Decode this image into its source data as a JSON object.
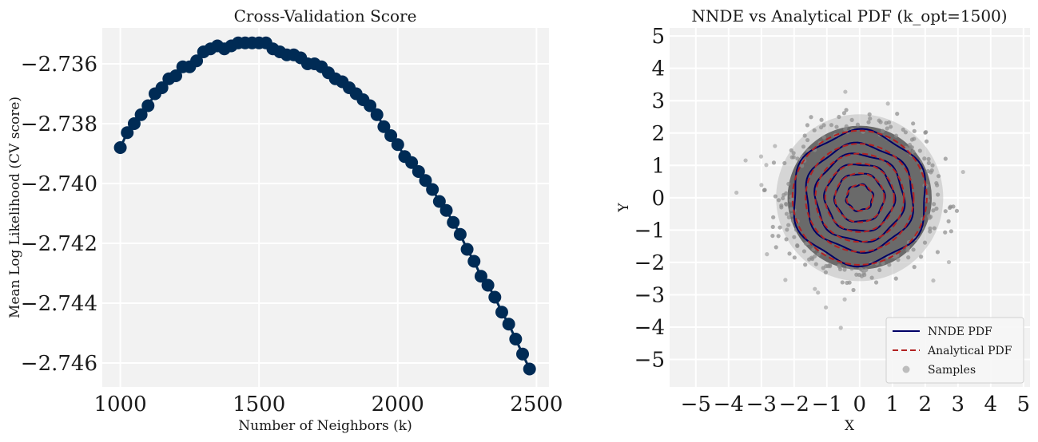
{
  "chart_data": [
    {
      "type": "line",
      "title": "Cross-Validation Score",
      "xlabel": "Number of Neighbors (k)",
      "ylabel": "Mean Log Likelihood (CV score)",
      "xlim": [
        935,
        2545
      ],
      "ylim": [
        -2.7468,
        -2.7348
      ],
      "xticks": [
        1000,
        1500,
        2000,
        2500
      ],
      "xtick_labels": [
        "1000",
        "1500",
        "2000",
        "2500"
      ],
      "yticks": [
        -2.736,
        -2.738,
        -2.74,
        -2.742,
        -2.744,
        -2.746
      ],
      "ytick_labels": [
        "−2.736",
        "−2.738",
        "−2.740",
        "−2.742",
        "−2.744",
        "−2.746"
      ],
      "grid": true,
      "marker_color": "#002b55",
      "series": [
        {
          "x": [
            1000,
            1025,
            1050,
            1075,
            1100,
            1125,
            1150,
            1175,
            1200,
            1225,
            1250,
            1275,
            1300,
            1325,
            1350,
            1375,
            1400,
            1425,
            1450,
            1475,
            1500,
            1525,
            1550,
            1575,
            1600,
            1625,
            1650,
            1675,
            1700,
            1725,
            1750,
            1775,
            1800,
            1825,
            1850,
            1875,
            1900,
            1925,
            1950,
            1975,
            2000,
            2025,
            2050,
            2075,
            2100,
            2125,
            2150,
            2175,
            2200,
            2225,
            2250,
            2275,
            2300,
            2325,
            2350,
            2375,
            2400,
            2425,
            2450,
            2475
          ],
          "values": [
            -2.7388,
            -2.7383,
            -2.738,
            -2.7377,
            -2.7374,
            -2.737,
            -2.7368,
            -2.7365,
            -2.7364,
            -2.7361,
            -2.7361,
            -2.7359,
            -2.7356,
            -2.7355,
            -2.7354,
            -2.7355,
            -2.7354,
            -2.7353,
            -2.7353,
            -2.7353,
            -2.7353,
            -2.7353,
            -2.7355,
            -2.7356,
            -2.7357,
            -2.7357,
            -2.7358,
            -2.736,
            -2.736,
            -2.7361,
            -2.7363,
            -2.7365,
            -2.7366,
            -2.7368,
            -2.737,
            -2.7372,
            -2.7374,
            -2.7377,
            -2.7381,
            -2.7384,
            -2.7387,
            -2.7391,
            -2.7393,
            -2.7396,
            -2.7399,
            -2.7402,
            -2.7406,
            -2.7409,
            -2.7413,
            -2.7417,
            -2.7422,
            -2.7426,
            -2.7431,
            -2.7434,
            -2.7438,
            -2.7443,
            -2.7447,
            -2.7452,
            -2.7457,
            -2.7462
          ]
        }
      ]
    },
    {
      "type": "scatter",
      "title": "NNDE vs Analytical PDF (k_opt=1500)",
      "xlabel": "X",
      "ylabel": "Y",
      "xlim": [
        -5.8,
        5.2
      ],
      "ylim": [
        -5.85,
        5.25
      ],
      "xticks": [
        -5,
        -4,
        -3,
        -2,
        -1,
        0,
        1,
        2,
        3,
        4,
        5
      ],
      "xtick_labels": [
        "−5",
        "−4",
        "−3",
        "−2",
        "−1",
        "0",
        "1",
        "2",
        "3",
        "4",
        "5"
      ],
      "yticks": [
        5,
        4,
        3,
        2,
        1,
        0,
        -1,
        -2,
        -3,
        -4,
        -5
      ],
      "ytick_labels": [
        "5",
        "4",
        "3",
        "2",
        "1",
        "0",
        "−1",
        "−2",
        "−3",
        "−4",
        "−5"
      ],
      "grid": true,
      "legend_position": "bottom-right",
      "contour_levels_radius": [
        0.4,
        0.75,
        1.05,
        1.35,
        1.65,
        2.05
      ],
      "series": [
        {
          "name": "NNDE PDF",
          "color": "#000066",
          "style": "solid"
        },
        {
          "name": "Analytical PDF",
          "color": "#b22222",
          "style": "dashed"
        },
        {
          "name": "Samples",
          "color": "#bdbdbd",
          "style": "scatter"
        }
      ],
      "sample_distribution": "standard bivariate normal (mean 0, std 1)"
    }
  ]
}
